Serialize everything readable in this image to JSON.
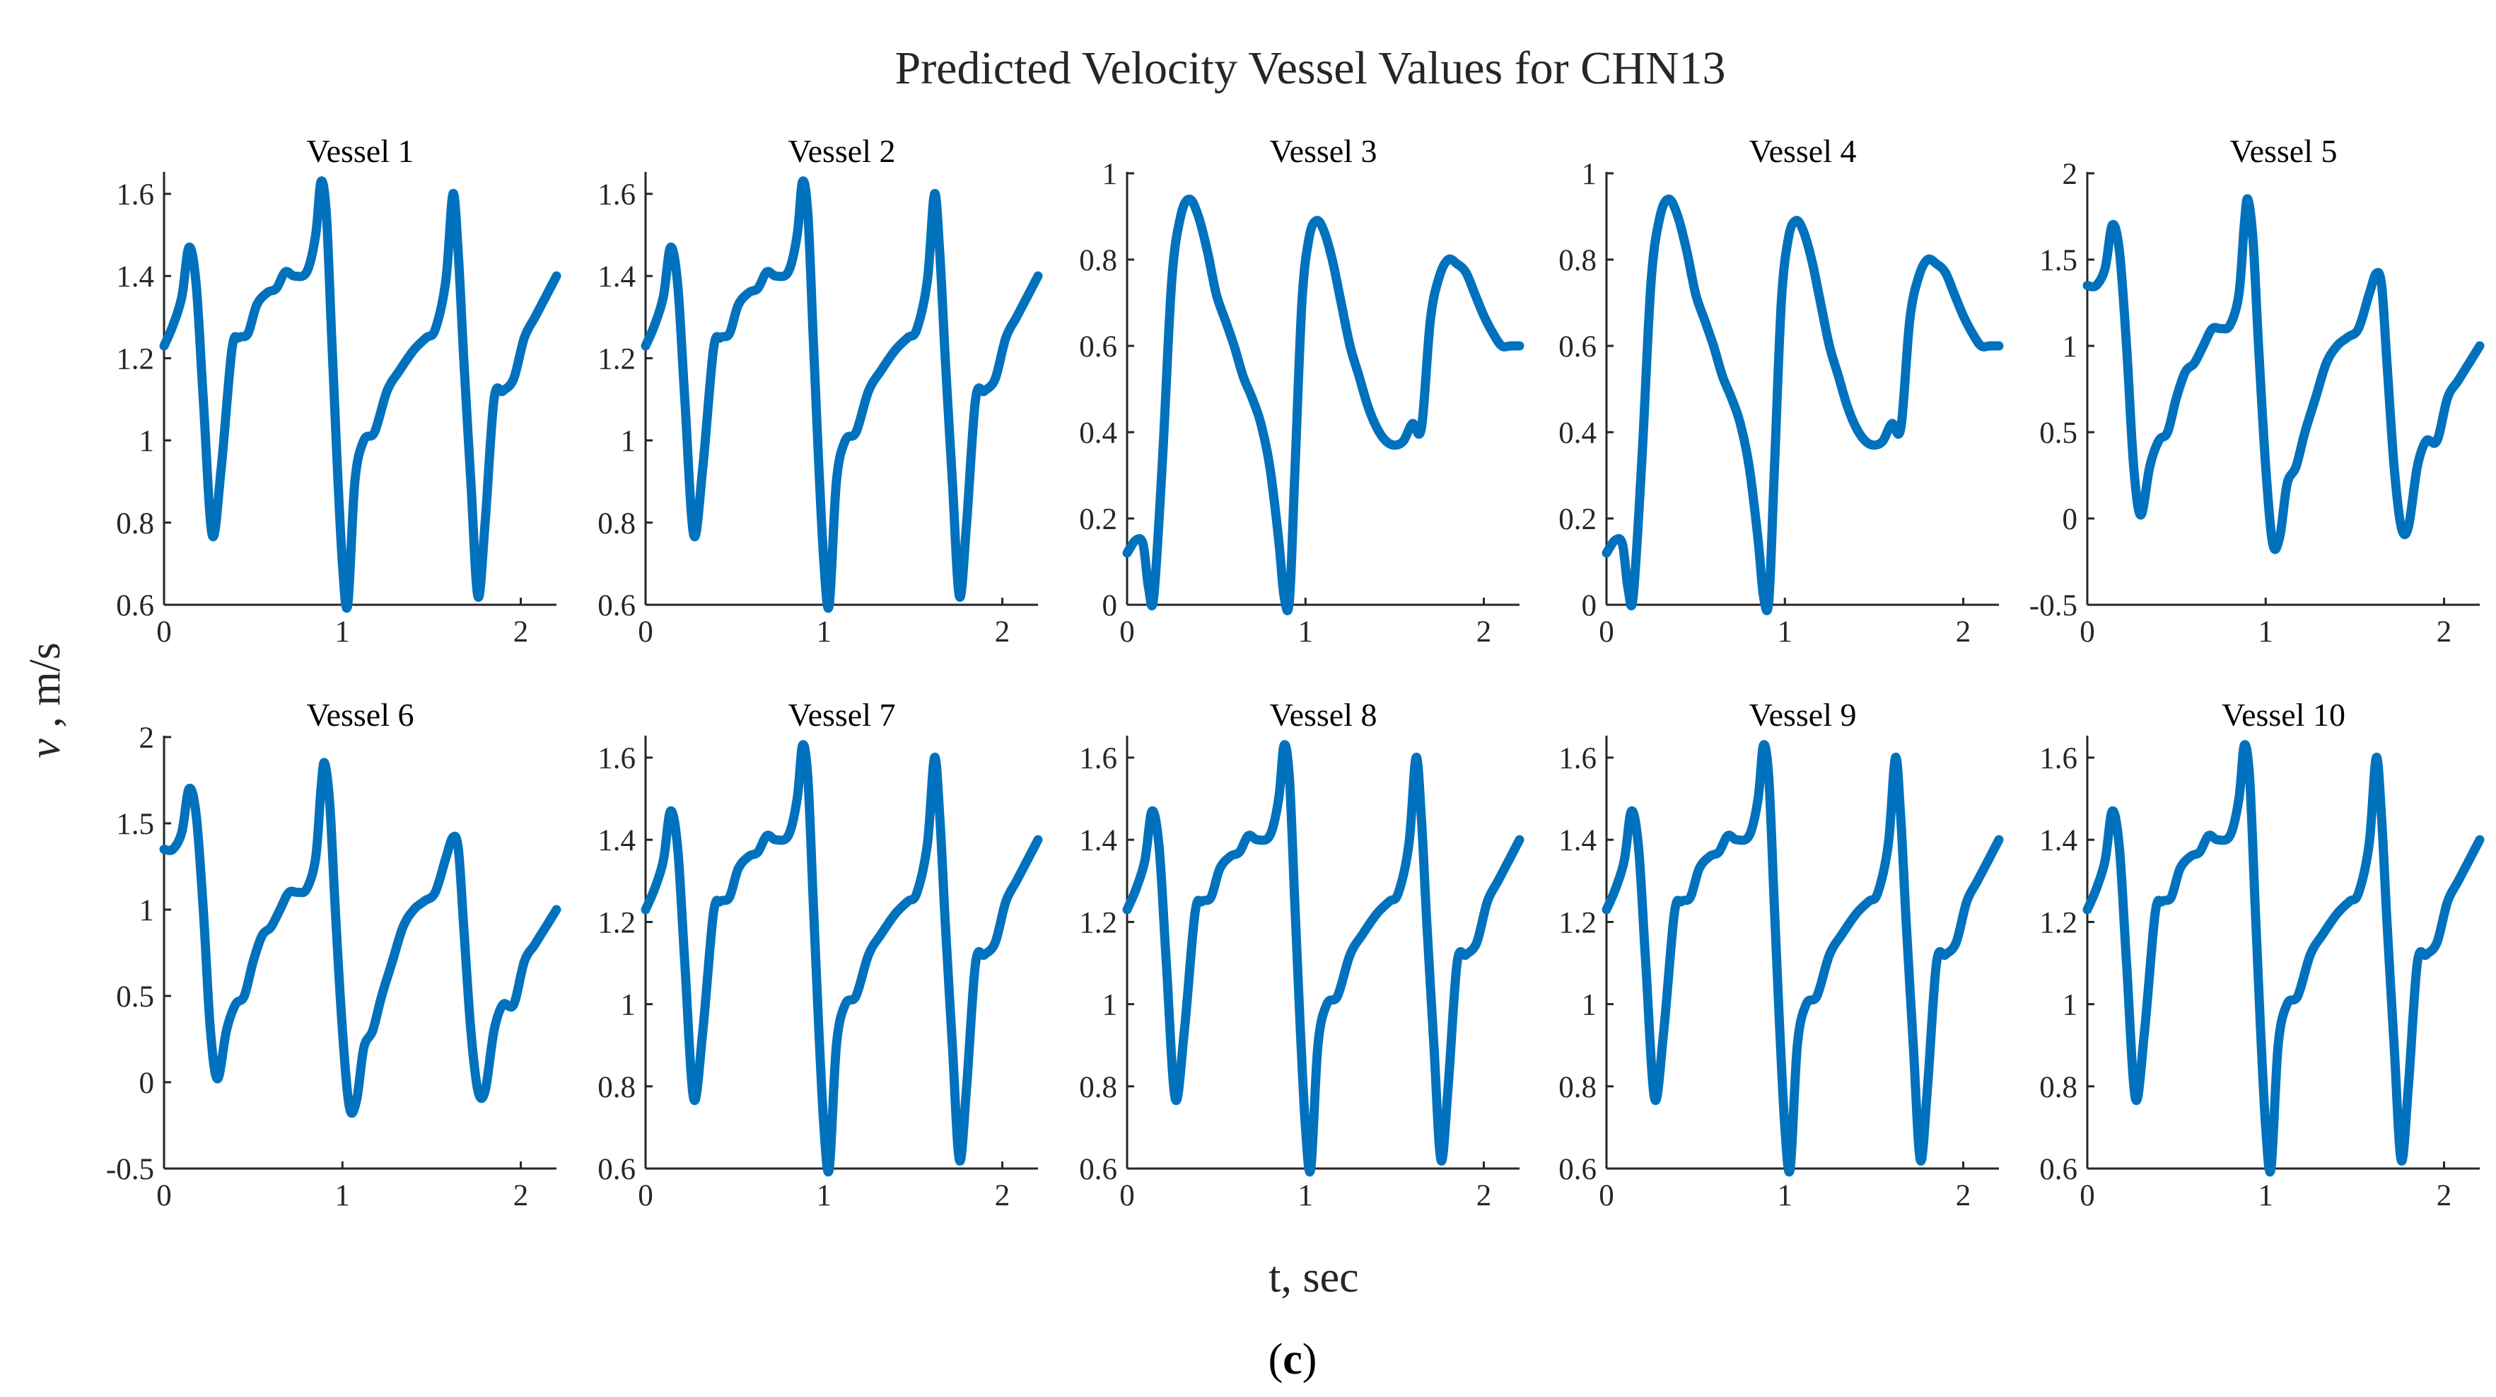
{
  "figure": {
    "title": "Predicted Velocity Vessel Values for CHN13",
    "ylabel_italic": "v",
    "ylabel_rest": " , m/s",
    "xlabel": "t, sec",
    "caption_open": "(",
    "caption_letter": "c",
    "caption_close": ")",
    "series_color": "#0072BD"
  },
  "chart_data": [
    {
      "type": "line",
      "title": "Vessel 1",
      "profile": "A",
      "xlim": [
        0,
        2.2
      ],
      "ylim": [
        0.6,
        1.65
      ],
      "xticks": [
        0,
        1,
        2
      ],
      "yticks": [
        0.6,
        0.8,
        1,
        1.2,
        1.4,
        1.6
      ],
      "ytick_labels": [
        "0.6",
        "0.8",
        "1",
        "1.2",
        "1.4",
        "1.6"
      ],
      "x": [
        0,
        0.05,
        0.1,
        0.14,
        0.18,
        0.22,
        0.27,
        0.32,
        0.38,
        0.42,
        0.47,
        0.52,
        0.58,
        0.63,
        0.68,
        0.73,
        0.8,
        0.85,
        0.88,
        0.91,
        0.94,
        0.97,
        1.0,
        1.03,
        1.07,
        1.12,
        1.18,
        1.25,
        1.32,
        1.4,
        1.47,
        1.52,
        1.58,
        1.62,
        1.65,
        1.68,
        1.72,
        1.76,
        1.8,
        1.85,
        1.9,
        1.96,
        2.02,
        2.08,
        2.14,
        2.2
      ],
      "y": [
        1.23,
        1.28,
        1.35,
        1.47,
        1.38,
        1.1,
        0.77,
        0.93,
        1.22,
        1.25,
        1.26,
        1.33,
        1.36,
        1.37,
        1.41,
        1.4,
        1.41,
        1.5,
        1.63,
        1.55,
        1.25,
        0.95,
        0.7,
        0.6,
        0.9,
        1.0,
        1.02,
        1.12,
        1.17,
        1.22,
        1.25,
        1.27,
        1.39,
        1.6,
        1.45,
        1.2,
        0.9,
        0.62,
        0.8,
        1.1,
        1.12,
        1.15,
        1.25,
        1.3,
        1.35,
        1.4
      ]
    },
    {
      "type": "line",
      "title": "Vessel 2",
      "profile": "A",
      "xlim": [
        0,
        2.2
      ],
      "ylim": [
        0.6,
        1.65
      ],
      "xticks": [
        0,
        1,
        2
      ],
      "yticks": [
        0.6,
        0.8,
        1,
        1.2,
        1.4,
        1.6
      ],
      "ytick_labels": [
        "0.6",
        "0.8",
        "1",
        "1.2",
        "1.4",
        "1.6"
      ],
      "x": [
        0,
        0.05,
        0.1,
        0.14,
        0.18,
        0.22,
        0.27,
        0.32,
        0.38,
        0.42,
        0.47,
        0.52,
        0.58,
        0.63,
        0.68,
        0.73,
        0.8,
        0.85,
        0.88,
        0.91,
        0.94,
        0.97,
        1.0,
        1.03,
        1.07,
        1.12,
        1.18,
        1.25,
        1.32,
        1.4,
        1.47,
        1.52,
        1.58,
        1.62,
        1.65,
        1.68,
        1.72,
        1.76,
        1.8,
        1.85,
        1.9,
        1.96,
        2.02,
        2.08,
        2.14,
        2.2
      ],
      "y": [
        1.23,
        1.28,
        1.35,
        1.47,
        1.38,
        1.1,
        0.77,
        0.93,
        1.22,
        1.25,
        1.26,
        1.33,
        1.36,
        1.37,
        1.41,
        1.4,
        1.41,
        1.5,
        1.63,
        1.55,
        1.25,
        0.95,
        0.7,
        0.6,
        0.9,
        1.0,
        1.02,
        1.12,
        1.17,
        1.22,
        1.25,
        1.27,
        1.39,
        1.6,
        1.45,
        1.2,
        0.9,
        0.62,
        0.8,
        1.1,
        1.12,
        1.15,
        1.25,
        1.3,
        1.35,
        1.4
      ]
    },
    {
      "type": "line",
      "title": "Vessel 3",
      "profile": "C",
      "xlim": [
        0,
        2.2
      ],
      "ylim": [
        0,
        1
      ],
      "xticks": [
        0,
        1,
        2
      ],
      "yticks": [
        0,
        0.2,
        0.4,
        0.6,
        0.8,
        1
      ],
      "ytick_labels": [
        "0",
        "0.2",
        "0.4",
        "0.6",
        "0.8",
        "1"
      ],
      "x": [
        0,
        0.05,
        0.09,
        0.12,
        0.15,
        0.2,
        0.25,
        0.3,
        0.35,
        0.4,
        0.45,
        0.5,
        0.55,
        0.6,
        0.65,
        0.7,
        0.75,
        0.8,
        0.85,
        0.88,
        0.91,
        0.94,
        0.98,
        1.02,
        1.06,
        1.1,
        1.15,
        1.2,
        1.25,
        1.3,
        1.35,
        1.4,
        1.45,
        1.5,
        1.55,
        1.6,
        1.65,
        1.7,
        1.75,
        1.8,
        1.85,
        1.9,
        1.95,
        2.0,
        2.05,
        2.1,
        2.15,
        2.2
      ],
      "y": [
        0.12,
        0.15,
        0.14,
        0.04,
        0.02,
        0.35,
        0.75,
        0.9,
        0.94,
        0.9,
        0.82,
        0.72,
        0.66,
        0.6,
        0.53,
        0.48,
        0.42,
        0.32,
        0.15,
        0.02,
        0.01,
        0.3,
        0.7,
        0.85,
        0.89,
        0.87,
        0.8,
        0.7,
        0.6,
        0.53,
        0.46,
        0.41,
        0.38,
        0.37,
        0.38,
        0.42,
        0.41,
        0.66,
        0.76,
        0.8,
        0.79,
        0.77,
        0.72,
        0.67,
        0.63,
        0.6,
        0.6,
        0.6
      ]
    },
    {
      "type": "line",
      "title": "Vessel 4",
      "profile": "C",
      "xlim": [
        0,
        2.2
      ],
      "ylim": [
        0,
        1
      ],
      "xticks": [
        0,
        1,
        2
      ],
      "yticks": [
        0,
        0.2,
        0.4,
        0.6,
        0.8,
        1
      ],
      "ytick_labels": [
        "0",
        "0.2",
        "0.4",
        "0.6",
        "0.8",
        "1"
      ],
      "x": [
        0,
        0.05,
        0.09,
        0.12,
        0.15,
        0.2,
        0.25,
        0.3,
        0.35,
        0.4,
        0.45,
        0.5,
        0.55,
        0.6,
        0.65,
        0.7,
        0.75,
        0.8,
        0.85,
        0.88,
        0.91,
        0.94,
        0.98,
        1.02,
        1.06,
        1.1,
        1.15,
        1.2,
        1.25,
        1.3,
        1.35,
        1.4,
        1.45,
        1.5,
        1.55,
        1.6,
        1.65,
        1.7,
        1.75,
        1.8,
        1.85,
        1.9,
        1.95,
        2.0,
        2.05,
        2.1,
        2.15,
        2.2
      ],
      "y": [
        0.12,
        0.15,
        0.14,
        0.04,
        0.02,
        0.35,
        0.75,
        0.9,
        0.94,
        0.9,
        0.82,
        0.72,
        0.66,
        0.6,
        0.53,
        0.48,
        0.42,
        0.32,
        0.15,
        0.02,
        0.01,
        0.3,
        0.7,
        0.85,
        0.89,
        0.87,
        0.8,
        0.7,
        0.6,
        0.53,
        0.46,
        0.41,
        0.38,
        0.37,
        0.38,
        0.42,
        0.41,
        0.66,
        0.76,
        0.8,
        0.79,
        0.77,
        0.72,
        0.67,
        0.63,
        0.6,
        0.6,
        0.6
      ]
    },
    {
      "type": "line",
      "title": "Vessel 5",
      "profile": "B",
      "xlim": [
        0,
        2.2
      ],
      "ylim": [
        -0.5,
        2
      ],
      "xticks": [
        0,
        1,
        2
      ],
      "yticks": [
        -0.5,
        0,
        0.5,
        1,
        1.5,
        2
      ],
      "ytick_labels": [
        "-0.5",
        "0",
        "0.5",
        "1",
        "1.5",
        "2"
      ],
      "x": [
        0,
        0.05,
        0.1,
        0.14,
        0.18,
        0.22,
        0.26,
        0.3,
        0.35,
        0.4,
        0.45,
        0.5,
        0.55,
        0.6,
        0.65,
        0.7,
        0.75,
        0.8,
        0.85,
        0.88,
        0.9,
        0.93,
        0.96,
        1.0,
        1.04,
        1.08,
        1.12,
        1.17,
        1.22,
        1.28,
        1.34,
        1.4,
        1.46,
        1.52,
        1.58,
        1.62,
        1.65,
        1.68,
        1.72,
        1.76,
        1.8,
        1.85,
        1.9,
        1.96,
        2.02,
        2.08,
        2.14,
        2.2
      ],
      "y": [
        1.35,
        1.35,
        1.45,
        1.7,
        1.55,
        1.0,
        0.3,
        0.02,
        0.3,
        0.45,
        0.5,
        0.7,
        0.85,
        0.9,
        1.0,
        1.1,
        1.1,
        1.12,
        1.3,
        1.7,
        1.85,
        1.6,
        1.0,
        0.3,
        -0.15,
        -0.1,
        0.2,
        0.3,
        0.5,
        0.7,
        0.9,
        1.0,
        1.05,
        1.1,
        1.3,
        1.42,
        1.35,
        0.9,
        0.3,
        -0.05,
        -0.05,
        0.3,
        0.45,
        0.45,
        0.7,
        0.8,
        0.9,
        1.0
      ]
    },
    {
      "type": "line",
      "title": "Vessel 6",
      "profile": "B",
      "xlim": [
        0,
        2.2
      ],
      "ylim": [
        -0.5,
        2
      ],
      "xticks": [
        0,
        1,
        2
      ],
      "yticks": [
        -0.5,
        0,
        0.5,
        1,
        1.5,
        2
      ],
      "ytick_labels": [
        "-0.5",
        "0",
        "0.5",
        "1",
        "1.5",
        "2"
      ],
      "x": [
        0,
        0.05,
        0.1,
        0.14,
        0.18,
        0.22,
        0.26,
        0.3,
        0.35,
        0.4,
        0.45,
        0.5,
        0.55,
        0.6,
        0.65,
        0.7,
        0.75,
        0.8,
        0.85,
        0.88,
        0.9,
        0.93,
        0.96,
        1.0,
        1.04,
        1.08,
        1.12,
        1.17,
        1.22,
        1.28,
        1.34,
        1.4,
        1.46,
        1.52,
        1.58,
        1.62,
        1.65,
        1.68,
        1.72,
        1.76,
        1.8,
        1.85,
        1.9,
        1.96,
        2.02,
        2.08,
        2.14,
        2.2
      ],
      "y": [
        1.35,
        1.35,
        1.45,
        1.7,
        1.55,
        1.0,
        0.3,
        0.02,
        0.3,
        0.45,
        0.5,
        0.7,
        0.85,
        0.9,
        1.0,
        1.1,
        1.1,
        1.12,
        1.3,
        1.7,
        1.85,
        1.6,
        1.0,
        0.3,
        -0.15,
        -0.1,
        0.2,
        0.3,
        0.5,
        0.7,
        0.9,
        1.0,
        1.05,
        1.1,
        1.3,
        1.42,
        1.35,
        0.9,
        0.3,
        -0.05,
        -0.05,
        0.3,
        0.45,
        0.45,
        0.7,
        0.8,
        0.9,
        1.0
      ]
    },
    {
      "type": "line",
      "title": "Vessel 7",
      "profile": "A",
      "xlim": [
        0,
        2.2
      ],
      "ylim": [
        0.6,
        1.65
      ],
      "xticks": [
        0,
        1,
        2
      ],
      "yticks": [
        0.6,
        0.8,
        1,
        1.2,
        1.4,
        1.6
      ],
      "ytick_labels": [
        "0.6",
        "0.8",
        "1",
        "1.2",
        "1.4",
        "1.6"
      ],
      "x": [
        0,
        0.05,
        0.1,
        0.14,
        0.18,
        0.22,
        0.27,
        0.32,
        0.38,
        0.42,
        0.47,
        0.52,
        0.58,
        0.63,
        0.68,
        0.73,
        0.8,
        0.85,
        0.88,
        0.91,
        0.94,
        0.97,
        1.0,
        1.03,
        1.07,
        1.12,
        1.18,
        1.25,
        1.32,
        1.4,
        1.47,
        1.52,
        1.58,
        1.62,
        1.65,
        1.68,
        1.72,
        1.76,
        1.8,
        1.85,
        1.9,
        1.96,
        2.02,
        2.08,
        2.14,
        2.2
      ],
      "y": [
        1.23,
        1.28,
        1.35,
        1.47,
        1.38,
        1.1,
        0.77,
        0.93,
        1.22,
        1.25,
        1.26,
        1.33,
        1.36,
        1.37,
        1.41,
        1.4,
        1.41,
        1.5,
        1.63,
        1.55,
        1.25,
        0.95,
        0.7,
        0.6,
        0.9,
        1.0,
        1.02,
        1.12,
        1.17,
        1.22,
        1.25,
        1.27,
        1.39,
        1.6,
        1.45,
        1.2,
        0.9,
        0.62,
        0.8,
        1.1,
        1.12,
        1.15,
        1.25,
        1.3,
        1.35,
        1.4
      ]
    },
    {
      "type": "line",
      "title": "Vessel 8",
      "profile": "A",
      "xlim": [
        0,
        2.2
      ],
      "ylim": [
        0.6,
        1.65
      ],
      "xticks": [
        0,
        1,
        2
      ],
      "yticks": [
        0.6,
        0.8,
        1,
        1.2,
        1.4,
        1.6
      ],
      "ytick_labels": [
        "0.6",
        "0.8",
        "1",
        "1.2",
        "1.4",
        "1.6"
      ],
      "x": [
        0,
        0.05,
        0.1,
        0.14,
        0.18,
        0.22,
        0.27,
        0.32,
        0.38,
        0.42,
        0.47,
        0.52,
        0.58,
        0.63,
        0.68,
        0.73,
        0.8,
        0.85,
        0.88,
        0.91,
        0.94,
        0.97,
        1.0,
        1.03,
        1.07,
        1.12,
        1.18,
        1.25,
        1.32,
        1.4,
        1.47,
        1.52,
        1.58,
        1.62,
        1.65,
        1.68,
        1.72,
        1.76,
        1.8,
        1.85,
        1.9,
        1.96,
        2.02,
        2.08,
        2.14,
        2.2
      ],
      "y": [
        1.23,
        1.28,
        1.35,
        1.47,
        1.38,
        1.1,
        0.77,
        0.93,
        1.22,
        1.25,
        1.26,
        1.33,
        1.36,
        1.37,
        1.41,
        1.4,
        1.41,
        1.5,
        1.63,
        1.55,
        1.25,
        0.95,
        0.7,
        0.6,
        0.9,
        1.0,
        1.02,
        1.12,
        1.17,
        1.22,
        1.25,
        1.27,
        1.39,
        1.6,
        1.45,
        1.2,
        0.9,
        0.62,
        0.8,
        1.1,
        1.12,
        1.15,
        1.25,
        1.3,
        1.35,
        1.4
      ]
    },
    {
      "type": "line",
      "title": "Vessel 9",
      "profile": "A",
      "xlim": [
        0,
        2.2
      ],
      "ylim": [
        0.6,
        1.65
      ],
      "xticks": [
        0,
        1,
        2
      ],
      "yticks": [
        0.6,
        0.8,
        1,
        1.2,
        1.4,
        1.6
      ],
      "ytick_labels": [
        "0.6",
        "0.8",
        "1",
        "1.2",
        "1.4",
        "1.6"
      ],
      "x": [
        0,
        0.05,
        0.1,
        0.14,
        0.18,
        0.22,
        0.27,
        0.32,
        0.38,
        0.42,
        0.47,
        0.52,
        0.58,
        0.63,
        0.68,
        0.73,
        0.8,
        0.85,
        0.88,
        0.91,
        0.94,
        0.97,
        1.0,
        1.03,
        1.07,
        1.12,
        1.18,
        1.25,
        1.32,
        1.4,
        1.47,
        1.52,
        1.58,
        1.62,
        1.65,
        1.68,
        1.72,
        1.76,
        1.8,
        1.85,
        1.9,
        1.96,
        2.02,
        2.08,
        2.14,
        2.2
      ],
      "y": [
        1.23,
        1.28,
        1.35,
        1.47,
        1.38,
        1.1,
        0.77,
        0.93,
        1.22,
        1.25,
        1.26,
        1.33,
        1.36,
        1.37,
        1.41,
        1.4,
        1.41,
        1.5,
        1.63,
        1.55,
        1.25,
        0.95,
        0.7,
        0.6,
        0.9,
        1.0,
        1.02,
        1.12,
        1.17,
        1.22,
        1.25,
        1.27,
        1.39,
        1.6,
        1.45,
        1.2,
        0.9,
        0.62,
        0.8,
        1.1,
        1.12,
        1.15,
        1.25,
        1.3,
        1.35,
        1.4
      ]
    },
    {
      "type": "line",
      "title": "Vessel 10",
      "profile": "A",
      "xlim": [
        0,
        2.2
      ],
      "ylim": [
        0.6,
        1.65
      ],
      "xticks": [
        0,
        1,
        2
      ],
      "yticks": [
        0.6,
        0.8,
        1,
        1.2,
        1.4,
        1.6
      ],
      "ytick_labels": [
        "0.6",
        "0.8",
        "1",
        "1.2",
        "1.4",
        "1.6"
      ],
      "x": [
        0,
        0.05,
        0.1,
        0.14,
        0.18,
        0.22,
        0.27,
        0.32,
        0.38,
        0.42,
        0.47,
        0.52,
        0.58,
        0.63,
        0.68,
        0.73,
        0.8,
        0.85,
        0.88,
        0.91,
        0.94,
        0.97,
        1.0,
        1.03,
        1.07,
        1.12,
        1.18,
        1.25,
        1.32,
        1.4,
        1.47,
        1.52,
        1.58,
        1.62,
        1.65,
        1.68,
        1.72,
        1.76,
        1.8,
        1.85,
        1.9,
        1.96,
        2.02,
        2.08,
        2.14,
        2.2
      ],
      "y": [
        1.23,
        1.28,
        1.35,
        1.47,
        1.38,
        1.1,
        0.77,
        0.93,
        1.22,
        1.25,
        1.26,
        1.33,
        1.36,
        1.37,
        1.41,
        1.4,
        1.41,
        1.5,
        1.63,
        1.55,
        1.25,
        0.95,
        0.7,
        0.6,
        0.9,
        1.0,
        1.02,
        1.12,
        1.17,
        1.22,
        1.25,
        1.27,
        1.39,
        1.6,
        1.45,
        1.2,
        0.9,
        0.62,
        0.8,
        1.1,
        1.12,
        1.15,
        1.25,
        1.3,
        1.35,
        1.4
      ]
    }
  ]
}
